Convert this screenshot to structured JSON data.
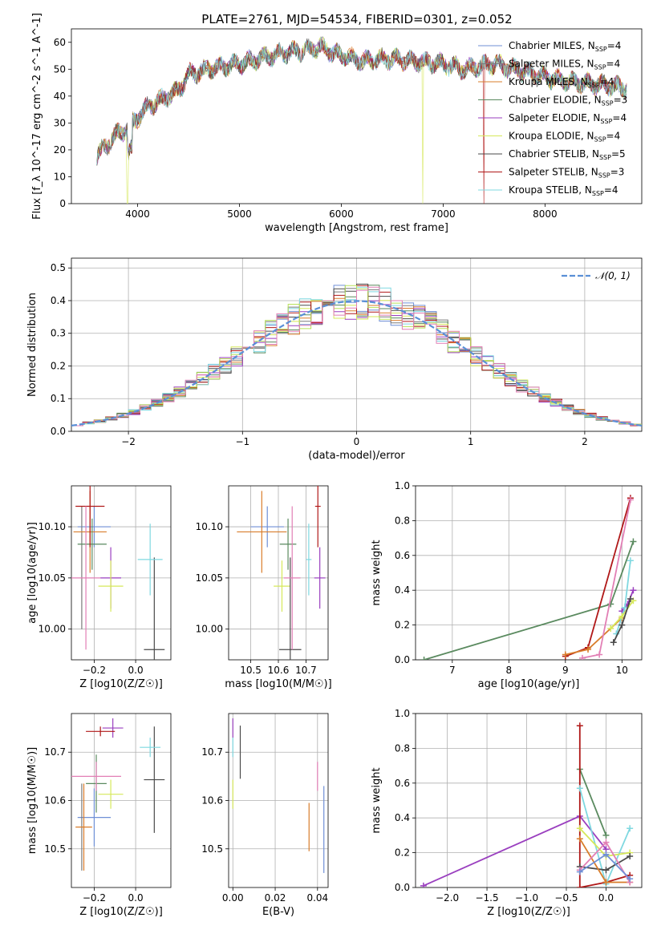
{
  "title": "PLATE=2761, MJD=54534, FIBERID=0301, z=0.052",
  "colors": {
    "Chabrier MILES": "#6f8fd6",
    "Salpeter MILES": "#7a7a7a",
    "Kroupa MILES": "#d97d2b",
    "Chabrier ELODIE": "#5a8a5f",
    "Salpeter ELODIE": "#9a3fbf",
    "Kroupa ELODIE": "#d6e85a",
    "Chabrier STELIB": "#4a4a4a",
    "Salpeter STELIB": "#b01818",
    "Kroupa STELIB": "#7fd8e0",
    "Kroupa ELODIE hist": "#b8e05a",
    "pink": "#e27fb5",
    "gaussian": "#5a8fd6"
  },
  "legend_spectrum": [
    {
      "name": "Chabrier MILES",
      "n": "4"
    },
    {
      "name": "Salpeter MILES",
      "n": "4"
    },
    {
      "name": "Kroupa MILES",
      "n": "4"
    },
    {
      "name": "Chabrier ELODIE",
      "n": "3"
    },
    {
      "name": "Salpeter ELODIE",
      "n": "4"
    },
    {
      "name": "Kroupa ELODIE",
      "n": "4"
    },
    {
      "name": "Chabrier STELIB",
      "n": "5"
    },
    {
      "name": "Salpeter STELIB",
      "n": "3"
    },
    {
      "name": "Kroupa STELIB",
      "n": "4"
    }
  ],
  "legend_nssp_prefix": "N",
  "legend_nssp_sub": "SSP",
  "legend_gauss": "𝒩(0, 1)",
  "chart_data": [
    {
      "id": "spectrum",
      "type": "line",
      "xlabel": "wavelength [Angstrom, rest frame]",
      "ylabel": "Flux [f_λ 10^-17 erg cm^-2 s^-1 A^-1]",
      "xlim": [
        3350,
        8950
      ],
      "ylim": [
        0,
        65
      ],
      "xticks": [
        4000,
        5000,
        6000,
        7000,
        8000
      ],
      "yticks": [
        0,
        10,
        20,
        30,
        40,
        50,
        60
      ],
      "continuum": [
        [
          3600,
          18
        ],
        [
          3700,
          22
        ],
        [
          3800,
          26
        ],
        [
          3900,
          28
        ],
        [
          4000,
          32
        ],
        [
          4100,
          36
        ],
        [
          4200,
          38
        ],
        [
          4400,
          42
        ],
        [
          4500,
          48
        ],
        [
          4700,
          50
        ],
        [
          5000,
          52
        ],
        [
          5300,
          55
        ],
        [
          5600,
          57
        ],
        [
          5800,
          58
        ],
        [
          6000,
          55
        ],
        [
          6200,
          53
        ],
        [
          6500,
          54
        ],
        [
          6700,
          53
        ],
        [
          7000,
          52
        ],
        [
          7200,
          50
        ],
        [
          7500,
          52
        ],
        [
          7800,
          49
        ],
        [
          8000,
          47
        ],
        [
          8300,
          45
        ],
        [
          8600,
          44
        ],
        [
          8800,
          43
        ]
      ]
    },
    {
      "id": "residuals",
      "type": "histogram",
      "xlabel": "(data-model)/error",
      "ylabel": "Normed distribution",
      "xlim": [
        -2.5,
        2.5
      ],
      "ylim": [
        0,
        0.53
      ],
      "xticks": [
        -2,
        -1,
        0,
        1,
        2
      ],
      "yticks": [
        0.0,
        0.1,
        0.2,
        0.3,
        0.4,
        0.5
      ]
    },
    {
      "id": "age_vs_Z",
      "type": "scatter",
      "xlabel": "Z [log10(Z/Z☉)]",
      "ylabel": "age [log10(age/yr)]",
      "xlim": [
        -0.31,
        0.17
      ],
      "ylim": [
        9.97,
        10.14
      ],
      "xticks": [
        -0.2,
        0.0
      ],
      "yticks": [
        10.0,
        10.05,
        10.1
      ],
      "points": [
        {
          "s": "Chabrier MILES",
          "x": -0.2,
          "y": 10.1,
          "xe": 0.08,
          "ye": 0.02
        },
        {
          "s": "Salpeter MILES",
          "x": -0.26,
          "y": 10.06,
          "xe": 0.0,
          "ye": 0.06
        },
        {
          "s": "Kroupa MILES",
          "x": -0.22,
          "y": 10.095,
          "xe": 0.08,
          "ye": 0.04
        },
        {
          "s": "Chabrier ELODIE",
          "x": -0.21,
          "y": 10.083,
          "xe": 0.07,
          "ye": 0.025
        },
        {
          "s": "Salpeter ELODIE",
          "x": -0.12,
          "y": 10.05,
          "xe": 0.05,
          "ye": 0.03
        },
        {
          "s": "Kroupa ELODIE",
          "x": -0.12,
          "y": 10.042,
          "xe": 0.06,
          "ye": 0.025
        },
        {
          "s": "Chabrier STELIB",
          "x": 0.09,
          "y": 9.98,
          "xe": 0.05,
          "ye": 0.09
        },
        {
          "s": "Salpeter STELIB",
          "x": -0.22,
          "y": 10.12,
          "xe": 0.07,
          "ye": 0.04
        },
        {
          "s": "Kroupa STELIB",
          "x": 0.07,
          "y": 10.068,
          "xe": 0.06,
          "ye": 0.035
        },
        {
          "s": "pink",
          "x": -0.24,
          "y": 10.05,
          "xe": 0.07,
          "ye": 0.07
        }
      ]
    },
    {
      "id": "age_vs_mass",
      "type": "scatter",
      "xlabel": "mass [log10(M/M☉)]",
      "ylabel": "",
      "xlim": [
        10.42,
        10.78
      ],
      "ylim": [
        9.97,
        10.14
      ],
      "xticks": [
        10.5,
        10.6,
        10.7
      ],
      "yticks": [
        10.0,
        10.05,
        10.1
      ],
      "points": [
        {
          "s": "Chabrier MILES",
          "x": 10.56,
          "y": 10.1,
          "xe": 0.06,
          "ye": 0.02
        },
        {
          "s": "Kroupa MILES",
          "x": 10.54,
          "y": 10.095,
          "xe": 0.09,
          "ye": 0.04
        },
        {
          "s": "Chabrier ELODIE",
          "x": 10.635,
          "y": 10.083,
          "xe": 0.03,
          "ye": 0.025
        },
        {
          "s": "Salpeter ELODIE",
          "x": 10.75,
          "y": 10.05,
          "xe": 0.02,
          "ye": 0.03
        },
        {
          "s": "Kroupa ELODIE",
          "x": 10.613,
          "y": 10.042,
          "xe": 0.03,
          "ye": 0.025
        },
        {
          "s": "Chabrier STELIB",
          "x": 10.643,
          "y": 9.98,
          "xe": 0.04,
          "ye": 0.09
        },
        {
          "s": "Salpeter STELIB",
          "x": 10.743,
          "y": 10.12,
          "xe": 0.01,
          "ye": 0.04
        },
        {
          "s": "Kroupa STELIB",
          "x": 10.71,
          "y": 10.068,
          "xe": 0.01,
          "ye": 0.035
        },
        {
          "s": "pink",
          "x": 10.65,
          "y": 10.05,
          "xe": 0.03,
          "ye": 0.07
        }
      ]
    },
    {
      "id": "weight_vs_age",
      "type": "line",
      "xlabel": "age [log10(age/yr)]",
      "ylabel": "mass weight",
      "xlim": [
        6.35,
        10.35
      ],
      "ylim": [
        0,
        1
      ],
      "xticks": [
        7,
        8,
        9,
        10
      ],
      "yticks": [
        0.0,
        0.2,
        0.4,
        0.6,
        0.8,
        1.0
      ],
      "series": [
        {
          "s": "Chabrier ELODIE",
          "x": [
            6.5,
            9.8,
            10.2
          ],
          "y": [
            0.0,
            0.32,
            0.68
          ]
        },
        {
          "s": "Salpeter STELIB",
          "x": [
            9.0,
            9.4,
            10.15
          ],
          "y": [
            0.02,
            0.07,
            0.93
          ]
        },
        {
          "s": "Kroupa MILES",
          "x": [
            9.0,
            9.4,
            10.0
          ],
          "y": [
            0.03,
            0.06,
            0.24
          ]
        },
        {
          "s": "pink",
          "x": [
            9.3,
            9.6,
            10.15
          ],
          "y": [
            0.01,
            0.03,
            0.92
          ]
        },
        {
          "s": "Salpeter ELODIE",
          "x": [
            10.0,
            10.1,
            10.2
          ],
          "y": [
            0.28,
            0.32,
            0.4
          ]
        },
        {
          "s": "Kroupa STELIB",
          "x": [
            9.9,
            10.05,
            10.15
          ],
          "y": [
            0.15,
            0.3,
            0.57
          ]
        },
        {
          "s": "Kroupa ELODIE",
          "x": [
            9.8,
            10.0,
            10.2
          ],
          "y": [
            0.18,
            0.25,
            0.34
          ]
        },
        {
          "s": "Chabrier STELIB",
          "x": [
            9.85,
            10.0,
            10.15
          ],
          "y": [
            0.1,
            0.2,
            0.35
          ]
        }
      ]
    },
    {
      "id": "mass_vs_Z",
      "type": "scatter",
      "xlabel": "Z [log10(Z/Z☉)]",
      "ylabel": "mass [log10(M/M☉)]",
      "xlim": [
        -0.31,
        0.17
      ],
      "ylim": [
        10.42,
        10.78
      ],
      "xticks": [
        -0.2,
        0.0
      ],
      "yticks": [
        10.5,
        10.6,
        10.7
      ],
      "points": [
        {
          "s": "Chabrier MILES",
          "x": -0.2,
          "y": 10.565,
          "xe": 0.08,
          "ye": 0.06
        },
        {
          "s": "Salpeter MILES",
          "x": -0.26,
          "y": 10.545,
          "xe": 0.0,
          "ye": 0.09
        },
        {
          "s": "Kroupa MILES",
          "x": -0.25,
          "y": 10.545,
          "xe": 0.04,
          "ye": 0.09
        },
        {
          "s": "Chabrier ELODIE",
          "x": -0.19,
          "y": 10.635,
          "xe": 0.05,
          "ye": 0.06
        },
        {
          "s": "Salpeter ELODIE",
          "x": -0.11,
          "y": 10.75,
          "xe": 0.05,
          "ye": 0.02
        },
        {
          "s": "Kroupa ELODIE",
          "x": -0.12,
          "y": 10.613,
          "xe": 0.06,
          "ye": 0.03
        },
        {
          "s": "Chabrier STELIB",
          "x": 0.09,
          "y": 10.643,
          "xe": 0.05,
          "ye": 0.11
        },
        {
          "s": "Salpeter STELIB",
          "x": -0.17,
          "y": 10.743,
          "xe": 0.07,
          "ye": 0.01
        },
        {
          "s": "Kroupa STELIB",
          "x": 0.07,
          "y": 10.71,
          "xe": 0.05,
          "ye": 0.02
        },
        {
          "s": "pink",
          "x": -0.19,
          "y": 10.65,
          "xe": 0.12,
          "ye": 0.03
        }
      ]
    },
    {
      "id": "mass_vs_ebv",
      "type": "scatter",
      "xlabel": "E(B-V)",
      "ylabel": "",
      "xlim": [
        -0.002,
        0.045
      ],
      "ylim": [
        10.42,
        10.78
      ],
      "xticks": [
        0.0,
        0.02,
        0.04
      ],
      "yticks": [
        10.5,
        10.6,
        10.7
      ],
      "points": [
        {
          "s": "Kroupa MILES",
          "x": 0.036,
          "y": 10.545,
          "xe": 0.0,
          "ye": 0.05
        },
        {
          "s": "Chabrier MILES",
          "x": 0.043,
          "y": 10.54,
          "xe": 0.0,
          "ye": 0.09
        },
        {
          "s": "pink",
          "x": 0.04,
          "y": 10.65,
          "xe": 0.0,
          "ye": 0.03
        },
        {
          "s": "Chabrier STELIB",
          "x": 0.0035,
          "y": 10.7,
          "xe": 0.0,
          "ye": 0.055
        },
        {
          "s": "Salpeter ELODIE",
          "x": 0.0,
          "y": 10.75,
          "xe": 0.0,
          "ye": 0.02
        },
        {
          "s": "Kroupa ELODIE",
          "x": 0.0,
          "y": 10.613,
          "xe": 0.0,
          "ye": 0.03
        },
        {
          "s": "Kroupa STELIB",
          "x": 0.0,
          "y": 10.71,
          "xe": 0.0,
          "ye": 0.02
        }
      ]
    },
    {
      "id": "weight_vs_Z",
      "type": "line",
      "xlabel": "Z [log10(Z/Z☉)]",
      "ylabel": "mass weight",
      "xlim": [
        -2.4,
        0.45
      ],
      "ylim": [
        0,
        1
      ],
      "xticks": [
        -2.0,
        -1.5,
        -1.0,
        -0.5,
        0.0
      ],
      "yticks": [
        0.0,
        0.2,
        0.4,
        0.6,
        0.8,
        1.0
      ],
      "series": [
        {
          "s": "Salpeter ELODIE",
          "x": [
            -2.3,
            -0.33,
            0.0
          ],
          "y": [
            0.01,
            0.41,
            0.22
          ]
        },
        {
          "s": "Chabrier ELODIE",
          "x": [
            -0.33,
            0.0
          ],
          "y": [
            0.68,
            0.3
          ]
        },
        {
          "s": "Salpeter STELIB",
          "x": [
            -0.33,
            -0.33,
            0.0,
            0.3
          ],
          "y": [
            0.93,
            0.0,
            0.03,
            0.07
          ]
        },
        {
          "s": "Kroupa STELIB",
          "x": [
            -0.33,
            0.0,
            0.3
          ],
          "y": [
            0.57,
            0.02,
            0.34
          ]
        },
        {
          "s": "Kroupa ELODIE",
          "x": [
            -0.33,
            0.0,
            0.3
          ],
          "y": [
            0.34,
            0.18,
            0.2
          ]
        },
        {
          "s": "Chabrier STELIB",
          "x": [
            -0.33,
            0.0,
            0.3
          ],
          "y": [
            0.12,
            0.1,
            0.18
          ]
        },
        {
          "s": "Kroupa MILES",
          "x": [
            -0.33,
            0.0,
            0.3
          ],
          "y": [
            0.28,
            0.03,
            0.03
          ]
        },
        {
          "s": "pink",
          "x": [
            -0.33,
            0.0,
            0.3
          ],
          "y": [
            0.1,
            0.26,
            0.03
          ]
        },
        {
          "s": "Chabrier MILES",
          "x": [
            -0.33,
            0.0,
            0.3
          ],
          "y": [
            0.09,
            0.19,
            0.05
          ]
        }
      ]
    }
  ]
}
